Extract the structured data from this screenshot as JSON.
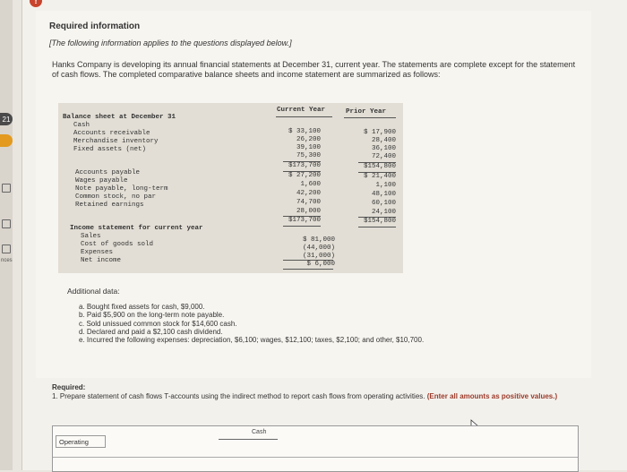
{
  "sidebar": {
    "tags": [
      "21",
      "",
      ""
    ],
    "label_fragment": "nces"
  },
  "header": {
    "title": "Required information",
    "note": "[The following information applies to the questions displayed below.]",
    "intro": "Hanks Company is developing its annual financial statements at December 31, current year. The statements are complete except for the statement of cash flows. The completed comparative balance sheets and income statement are summarized as follows:"
  },
  "statement": {
    "col_current": "Current Year",
    "col_prior": "Prior Year",
    "balance_title": "Balance sheet at December 31",
    "assets": [
      {
        "label": "Cash",
        "current": "$ 33,100",
        "prior": "$ 17,900"
      },
      {
        "label": "Accounts receivable",
        "current": "26,200",
        "prior": "28,400"
      },
      {
        "label": "Merchandise inventory",
        "current": "39,100",
        "prior": "36,100"
      },
      {
        "label": "Fixed assets (net)",
        "current": "75,300",
        "prior": "72,400"
      }
    ],
    "assets_total": {
      "current": "$173,700",
      "prior": "$154,800"
    },
    "liabilities": [
      {
        "label": "Accounts payable",
        "current": "$ 27,200",
        "prior": "$ 21,400"
      },
      {
        "label": "Wages payable",
        "current": "1,600",
        "prior": "1,100"
      },
      {
        "label": "Note payable, long-term",
        "current": "42,200",
        "prior": "48,100"
      },
      {
        "label": "Common stock, no par",
        "current": "74,700",
        "prior": "60,100"
      },
      {
        "label": "Retained earnings",
        "current": "28,000",
        "prior": "24,100"
      }
    ],
    "liabilities_total": {
      "current": "$173,700",
      "prior": "$154,800"
    },
    "income_title": "Income statement for current year",
    "income": [
      {
        "label": "Sales",
        "current": "$ 81,000"
      },
      {
        "label": "Cost of goods sold",
        "current": "(44,000)"
      },
      {
        "label": "Expenses",
        "current": "(31,000)"
      },
      {
        "label": "Net income",
        "current": "$  6,000"
      }
    ]
  },
  "additional": {
    "title": "Additional data:",
    "items": [
      "a. Bought fixed assets for cash, $9,000.",
      "b. Paid $5,900 on the long-term note payable.",
      "c. Sold unissued common stock for $14,600 cash.",
      "d. Declared and paid a $2,100 cash dividend.",
      "e. Incurred the following expenses: depreciation, $6,100; wages, $12,100; taxes, $2,100; and other, $10,700."
    ]
  },
  "required": {
    "label": "Required:",
    "text": "1. Prepare statement of cash flows T-accounts using the indirect method to report cash flows from operating activities.",
    "emphasis": "(Enter all amounts as positive values.)"
  },
  "taccount": {
    "title": "Cash",
    "operating_label": "Operating"
  }
}
